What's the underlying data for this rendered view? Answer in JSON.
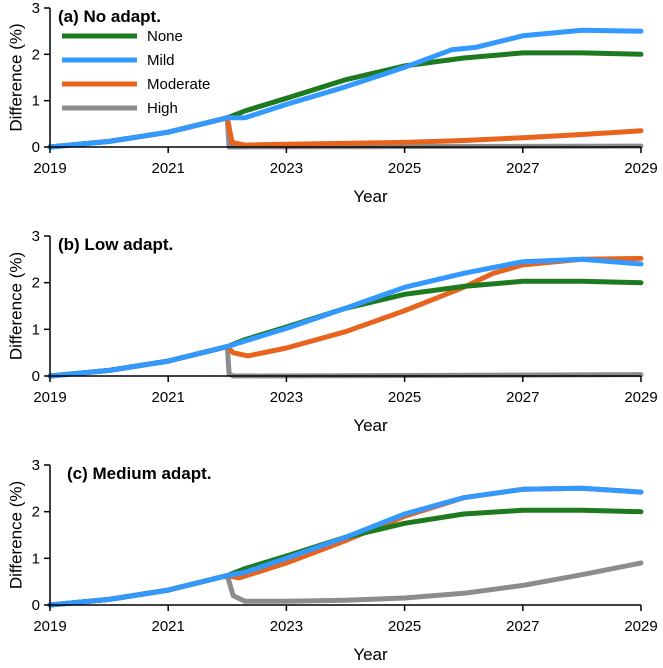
{
  "colors": {
    "None": "#1e7a1e",
    "Mild": "#3399ff",
    "Moderate": "#e8641e",
    "High": "#8c8c8c"
  },
  "legend": [
    {
      "name": "None",
      "label": "None"
    },
    {
      "name": "Mild",
      "label": "Mild"
    },
    {
      "name": "Moderate",
      "label": "Moderate"
    },
    {
      "name": "High",
      "label": "High"
    }
  ],
  "chart_data": [
    {
      "type": "line",
      "title": "(a) No adapt.",
      "xlabel": "Year",
      "ylabel": "Difference (%)",
      "xlim": [
        2019,
        2029
      ],
      "ylim": [
        0,
        3
      ],
      "xticks": [
        2019,
        2021,
        2023,
        2025,
        2027,
        2029
      ],
      "yticks": [
        0,
        1,
        2,
        3
      ],
      "legend": "top-left",
      "series": [
        {
          "name": "None",
          "points": [
            [
              2019,
              0
            ],
            [
              2020,
              0.12
            ],
            [
              2021,
              0.32
            ],
            [
              2022,
              0.63
            ],
            [
              2022.3,
              0.78
            ],
            [
              2023,
              1.05
            ],
            [
              2024,
              1.45
            ],
            [
              2025,
              1.75
            ],
            [
              2026,
              1.92
            ],
            [
              2027,
              2.03
            ],
            [
              2028,
              2.03
            ],
            [
              2029,
              2.0
            ]
          ]
        },
        {
          "name": "Mild",
          "points": [
            [
              2019,
              0
            ],
            [
              2020,
              0.12
            ],
            [
              2021,
              0.32
            ],
            [
              2022,
              0.63
            ],
            [
              2022.3,
              0.63
            ],
            [
              2023,
              0.92
            ],
            [
              2024,
              1.3
            ],
            [
              2025,
              1.72
            ],
            [
              2025.8,
              2.1
            ],
            [
              2026.2,
              2.15
            ],
            [
              2027,
              2.4
            ],
            [
              2028,
              2.52
            ],
            [
              2029,
              2.5
            ]
          ]
        },
        {
          "name": "Moderate",
          "points": [
            [
              2019,
              0
            ],
            [
              2020,
              0.12
            ],
            [
              2021,
              0.32
            ],
            [
              2022,
              0.63
            ],
            [
              2022.08,
              0.1
            ],
            [
              2022.3,
              0.04
            ],
            [
              2023,
              0.06
            ],
            [
              2025,
              0.1
            ],
            [
              2026,
              0.14
            ],
            [
              2027,
              0.2
            ],
            [
              2028,
              0.27
            ],
            [
              2029,
              0.35
            ]
          ]
        },
        {
          "name": "High",
          "points": [
            [
              2019,
              0
            ],
            [
              2020,
              0.12
            ],
            [
              2021,
              0.32
            ],
            [
              2022,
              0.63
            ],
            [
              2022.03,
              0.0
            ],
            [
              2025,
              0.01
            ],
            [
              2029,
              0.02
            ]
          ]
        }
      ]
    },
    {
      "type": "line",
      "title": "(b) Low adapt.",
      "xlabel": "Year",
      "ylabel": "Difference (%)",
      "xlim": [
        2019,
        2029
      ],
      "ylim": [
        0,
        3
      ],
      "xticks": [
        2019,
        2021,
        2023,
        2025,
        2027,
        2029
      ],
      "yticks": [
        0,
        1,
        2,
        3
      ],
      "series": [
        {
          "name": "None",
          "points": [
            [
              2019,
              0
            ],
            [
              2020,
              0.12
            ],
            [
              2021,
              0.32
            ],
            [
              2022,
              0.63
            ],
            [
              2022.3,
              0.78
            ],
            [
              2023,
              1.05
            ],
            [
              2024,
              1.45
            ],
            [
              2025,
              1.75
            ],
            [
              2026,
              1.92
            ],
            [
              2027,
              2.03
            ],
            [
              2028,
              2.03
            ],
            [
              2029,
              2.0
            ]
          ]
        },
        {
          "name": "Mild",
          "points": [
            [
              2019,
              0
            ],
            [
              2020,
              0.12
            ],
            [
              2021,
              0.32
            ],
            [
              2022,
              0.63
            ],
            [
              2022.3,
              0.75
            ],
            [
              2023,
              1.02
            ],
            [
              2024,
              1.45
            ],
            [
              2025,
              1.9
            ],
            [
              2026,
              2.2
            ],
            [
              2027,
              2.45
            ],
            [
              2028,
              2.5
            ],
            [
              2029,
              2.4
            ]
          ]
        },
        {
          "name": "Moderate",
          "points": [
            [
              2019,
              0
            ],
            [
              2020,
              0.12
            ],
            [
              2021,
              0.32
            ],
            [
              2022,
              0.63
            ],
            [
              2022.1,
              0.5
            ],
            [
              2022.35,
              0.43
            ],
            [
              2023,
              0.6
            ],
            [
              2024,
              0.95
            ],
            [
              2025,
              1.4
            ],
            [
              2026,
              1.9
            ],
            [
              2026.5,
              2.2
            ],
            [
              2027,
              2.38
            ],
            [
              2028,
              2.5
            ],
            [
              2029,
              2.52
            ]
          ]
        },
        {
          "name": "High",
          "points": [
            [
              2019,
              0
            ],
            [
              2020,
              0.12
            ],
            [
              2021,
              0.32
            ],
            [
              2022,
              0.63
            ],
            [
              2022.03,
              0.05
            ],
            [
              2022.1,
              0.0
            ],
            [
              2025,
              0.01
            ],
            [
              2029,
              0.03
            ]
          ]
        }
      ]
    },
    {
      "type": "line",
      "title": "(c) Medium adapt.",
      "xlabel": "Year",
      "ylabel": "Difference (%)",
      "xlim": [
        2019,
        2029
      ],
      "ylim": [
        0,
        3
      ],
      "xticks": [
        2019,
        2021,
        2023,
        2025,
        2027,
        2029
      ],
      "yticks": [
        0,
        1,
        2,
        3
      ],
      "series": [
        {
          "name": "None",
          "points": [
            [
              2019,
              0
            ],
            [
              2020,
              0.12
            ],
            [
              2021,
              0.32
            ],
            [
              2022,
              0.63
            ],
            [
              2022.3,
              0.78
            ],
            [
              2023,
              1.05
            ],
            [
              2024,
              1.45
            ],
            [
              2025,
              1.75
            ],
            [
              2026,
              1.95
            ],
            [
              2027,
              2.03
            ],
            [
              2028,
              2.03
            ],
            [
              2029,
              2.0
            ]
          ]
        },
        {
          "name": "Mild",
          "points": [
            [
              2019,
              0
            ],
            [
              2020,
              0.12
            ],
            [
              2021,
              0.32
            ],
            [
              2022,
              0.63
            ],
            [
              2022.3,
              0.7
            ],
            [
              2023,
              1.0
            ],
            [
              2024,
              1.45
            ],
            [
              2025,
              1.95
            ],
            [
              2026,
              2.3
            ],
            [
              2027,
              2.48
            ],
            [
              2028,
              2.5
            ],
            [
              2029,
              2.42
            ]
          ]
        },
        {
          "name": "Moderate",
          "points": [
            [
              2019,
              0
            ],
            [
              2020,
              0.12
            ],
            [
              2021,
              0.32
            ],
            [
              2022,
              0.63
            ],
            [
              2022.2,
              0.58
            ],
            [
              2023,
              0.9
            ],
            [
              2024,
              1.38
            ],
            [
              2025,
              1.9
            ],
            [
              2026,
              2.3
            ],
            [
              2027,
              2.48
            ],
            [
              2028,
              2.5
            ],
            [
              2029,
              2.42
            ]
          ]
        },
        {
          "name": "High",
          "points": [
            [
              2019,
              0
            ],
            [
              2020,
              0.12
            ],
            [
              2021,
              0.32
            ],
            [
              2022,
              0.63
            ],
            [
              2022.1,
              0.2
            ],
            [
              2022.3,
              0.08
            ],
            [
              2023,
              0.08
            ],
            [
              2024,
              0.1
            ],
            [
              2025,
              0.15
            ],
            [
              2026,
              0.25
            ],
            [
              2027,
              0.42
            ],
            [
              2028,
              0.65
            ],
            [
              2029,
              0.9
            ]
          ]
        }
      ]
    }
  ]
}
